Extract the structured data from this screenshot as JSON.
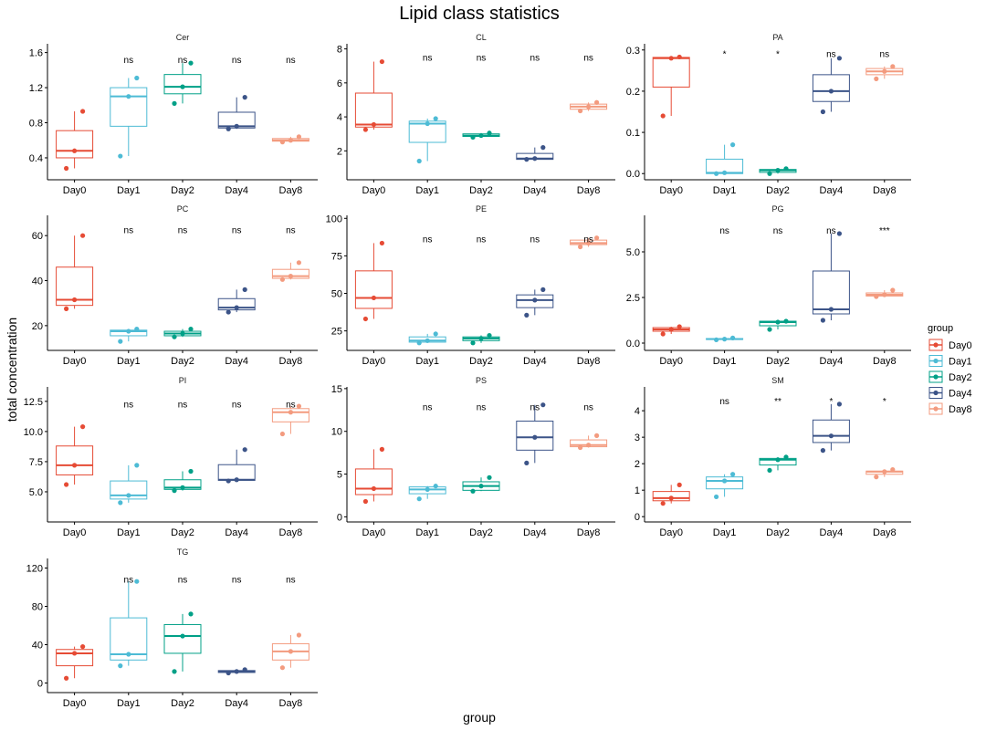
{
  "chart_data": {
    "type": "box",
    "title": "Lipid class statistics",
    "xlabel": "group",
    "ylabel": "total concentration",
    "grid": false,
    "categories": [
      "Day0",
      "Day1",
      "Day2",
      "Day4",
      "Day8"
    ],
    "legend": {
      "title": "group",
      "position": "right",
      "entries": [
        "Day0",
        "Day1",
        "Day2",
        "Day4",
        "Day8"
      ]
    },
    "colors": {
      "Day0": "#E64B35",
      "Day1": "#4DBBD5",
      "Day2": "#00A087",
      "Day4": "#3C5488",
      "Day8": "#F39B7F"
    },
    "panels": [
      {
        "name": "Cer",
        "ylim": [
          0.15,
          1.7
        ],
        "ticks": [
          0.4,
          0.8,
          1.2,
          1.6
        ],
        "tick_labels": [
          "0.4",
          "0.8",
          "1.2",
          "1.6"
        ],
        "sig": [
          "",
          "ns",
          "ns",
          "ns",
          "ns"
        ],
        "sig_y": 1.48,
        "boxes": [
          {
            "q1": 0.4,
            "median": 0.48,
            "q3": 0.71,
            "lo": 0.28,
            "hi": 0.93,
            "points": [
              0.28,
              0.48,
              0.93
            ]
          },
          {
            "q1": 0.76,
            "median": 1.1,
            "q3": 1.2,
            "lo": 0.42,
            "hi": 1.31,
            "points": [
              0.42,
              1.1,
              1.31
            ]
          },
          {
            "q1": 1.13,
            "median": 1.21,
            "q3": 1.35,
            "lo": 1.02,
            "hi": 1.48,
            "points": [
              1.02,
              1.21,
              1.48
            ]
          },
          {
            "q1": 0.74,
            "median": 0.76,
            "q3": 0.92,
            "lo": 0.73,
            "hi": 1.09,
            "points": [
              0.73,
              0.76,
              1.09
            ]
          },
          {
            "q1": 0.59,
            "median": 0.6,
            "q3": 0.62,
            "lo": 0.58,
            "hi": 0.64,
            "points": [
              0.58,
              0.6,
              0.64
            ]
          }
        ]
      },
      {
        "name": "CL",
        "ylim": [
          0.3,
          8.3
        ],
        "ticks": [
          2,
          4,
          6,
          8
        ],
        "tick_labels": [
          "2",
          "4",
          "6",
          "8"
        ],
        "sig": [
          "",
          "ns",
          "ns",
          "ns",
          "ns"
        ],
        "sig_y": 7.3,
        "boxes": [
          {
            "q1": 3.4,
            "median": 3.55,
            "q3": 5.4,
            "lo": 3.25,
            "hi": 7.25,
            "points": [
              3.25,
              3.55,
              7.25
            ]
          },
          {
            "q1": 2.5,
            "median": 3.6,
            "q3": 3.75,
            "lo": 1.4,
            "hi": 3.9,
            "points": [
              1.4,
              3.6,
              3.9
            ]
          },
          {
            "q1": 2.85,
            "median": 2.9,
            "q3": 3.0,
            "lo": 2.8,
            "hi": 3.05,
            "points": [
              2.8,
              2.9,
              3.05
            ]
          },
          {
            "q1": 1.5,
            "median": 1.55,
            "q3": 1.85,
            "lo": 1.5,
            "hi": 2.2,
            "points": [
              1.5,
              1.55,
              2.2
            ]
          },
          {
            "q1": 4.45,
            "median": 4.6,
            "q3": 4.75,
            "lo": 4.35,
            "hi": 4.85,
            "points": [
              4.35,
              4.6,
              4.85
            ]
          }
        ]
      },
      {
        "name": "PA",
        "ylim": [
          -0.015,
          0.315
        ],
        "ticks": [
          0.0,
          0.1,
          0.2,
          0.3
        ],
        "tick_labels": [
          "0.0",
          "0.1",
          "0.2",
          "0.3"
        ],
        "sig": [
          "",
          "*",
          "*",
          "ns",
          "ns"
        ],
        "sig_y": 0.283,
        "boxes": [
          {
            "q1": 0.21,
            "median": 0.28,
            "q3": 0.282,
            "lo": 0.14,
            "hi": 0.283,
            "points": [
              0.14,
              0.28,
              0.283
            ]
          },
          {
            "q1": 0.0,
            "median": 0.002,
            "q3": 0.035,
            "lo": 0.0,
            "hi": 0.07,
            "points": [
              0.0,
              0.002,
              0.07
            ]
          },
          {
            "q1": 0.003,
            "median": 0.008,
            "q3": 0.01,
            "lo": 0.0,
            "hi": 0.012,
            "points": [
              0.0,
              0.008,
              0.012
            ]
          },
          {
            "q1": 0.175,
            "median": 0.2,
            "q3": 0.24,
            "lo": 0.15,
            "hi": 0.28,
            "points": [
              0.15,
              0.2,
              0.28
            ]
          },
          {
            "q1": 0.24,
            "median": 0.248,
            "q3": 0.255,
            "lo": 0.23,
            "hi": 0.26,
            "points": [
              0.23,
              0.248,
              0.26
            ]
          }
        ]
      },
      {
        "name": "PC",
        "ylim": [
          9,
          69
        ],
        "ticks": [
          20,
          40,
          60
        ],
        "tick_labels": [
          "20",
          "40",
          "60"
        ],
        "sig": [
          "",
          "ns",
          "ns",
          "ns",
          "ns"
        ],
        "sig_y": 61,
        "boxes": [
          {
            "q1": 29,
            "median": 31.5,
            "q3": 46,
            "lo": 27.5,
            "hi": 60,
            "points": [
              27.5,
              31.5,
              60
            ]
          },
          {
            "q1": 15.5,
            "median": 17.5,
            "q3": 18,
            "lo": 13,
            "hi": 18.5,
            "points": [
              13,
              17.5,
              18.5
            ]
          },
          {
            "q1": 15.5,
            "median": 16.5,
            "q3": 17.5,
            "lo": 15,
            "hi": 18.5,
            "points": [
              15,
              16.5,
              18.5
            ]
          },
          {
            "q1": 27,
            "median": 28,
            "q3": 32,
            "lo": 26,
            "hi": 36,
            "points": [
              26,
              28,
              36
            ]
          },
          {
            "q1": 41,
            "median": 42,
            "q3": 45,
            "lo": 40.5,
            "hi": 48,
            "points": [
              40.5,
              42,
              48
            ]
          }
        ]
      },
      {
        "name": "PE",
        "ylim": [
          12,
          102
        ],
        "ticks": [
          25,
          50,
          75,
          100
        ],
        "tick_labels": [
          "25",
          "50",
          "75",
          "100"
        ],
        "sig": [
          "",
          "ns",
          "ns",
          "ns",
          "ns"
        ],
        "sig_y": 84,
        "boxes": [
          {
            "q1": 40,
            "median": 47,
            "q3": 65,
            "lo": 33,
            "hi": 83.5,
            "points": [
              33,
              47,
              83.5
            ]
          },
          {
            "q1": 17.5,
            "median": 18.5,
            "q3": 21,
            "lo": 17,
            "hi": 23,
            "points": [
              17,
              18.5,
              23
            ]
          },
          {
            "q1": 18.5,
            "median": 20,
            "q3": 21,
            "lo": 17,
            "hi": 22,
            "points": [
              17,
              20,
              22
            ]
          },
          {
            "q1": 40.5,
            "median": 45.5,
            "q3": 49,
            "lo": 35.5,
            "hi": 52.5,
            "points": [
              35.5,
              45.5,
              52.5
            ]
          },
          {
            "q1": 82.5,
            "median": 83.5,
            "q3": 85.5,
            "lo": 81,
            "hi": 87,
            "points": [
              81,
              83.5,
              87
            ]
          }
        ]
      },
      {
        "name": "PG",
        "ylim": [
          -0.4,
          7.0
        ],
        "ticks": [
          0.0,
          2.5,
          5.0
        ],
        "tick_labels": [
          "0.0",
          "2.5",
          "5.0"
        ],
        "sig": [
          "",
          "ns",
          "ns",
          "ns",
          "***"
        ],
        "sig_y": 6.0,
        "boxes": [
          {
            "q1": 0.65,
            "median": 0.75,
            "q3": 0.85,
            "lo": 0.5,
            "hi": 0.9,
            "points": [
              0.5,
              0.75,
              0.9
            ]
          },
          {
            "q1": 0.2,
            "median": 0.22,
            "q3": 0.25,
            "lo": 0.18,
            "hi": 0.28,
            "points": [
              0.18,
              0.22,
              0.28
            ]
          },
          {
            "q1": 0.95,
            "median": 1.15,
            "q3": 1.2,
            "lo": 0.75,
            "hi": 1.2,
            "points": [
              0.75,
              1.15,
              1.2
            ]
          },
          {
            "q1": 1.6,
            "median": 1.85,
            "q3": 3.95,
            "lo": 1.25,
            "hi": 6.0,
            "points": [
              1.25,
              1.85,
              6.0
            ]
          },
          {
            "q1": 2.58,
            "median": 2.65,
            "q3": 2.75,
            "lo": 2.55,
            "hi": 2.9,
            "points": [
              2.55,
              2.65,
              2.9
            ]
          }
        ]
      },
      {
        "name": "PI",
        "ylim": [
          2.5,
          13.7
        ],
        "ticks": [
          5.0,
          7.5,
          10.0,
          12.5
        ],
        "tick_labels": [
          "5.0",
          "7.5",
          "10.0",
          "12.5"
        ],
        "sig": [
          "",
          "ns",
          "ns",
          "ns",
          "ns"
        ],
        "sig_y": 12.0,
        "boxes": [
          {
            "q1": 6.4,
            "median": 7.2,
            "q3": 8.8,
            "lo": 5.6,
            "hi": 10.4,
            "points": [
              5.6,
              7.2,
              10.4
            ]
          },
          {
            "q1": 4.4,
            "median": 4.7,
            "q3": 5.9,
            "lo": 4.1,
            "hi": 7.2,
            "points": [
              4.1,
              4.7,
              7.2
            ]
          },
          {
            "q1": 5.2,
            "median": 5.35,
            "q3": 6.0,
            "lo": 5.1,
            "hi": 6.7,
            "points": [
              5.1,
              5.35,
              6.7
            ]
          },
          {
            "q1": 5.95,
            "median": 6.0,
            "q3": 7.25,
            "lo": 5.9,
            "hi": 8.5,
            "points": [
              5.9,
              6.0,
              8.5
            ]
          },
          {
            "q1": 10.8,
            "median": 11.6,
            "q3": 11.9,
            "lo": 9.8,
            "hi": 12.1,
            "points": [
              9.8,
              11.6,
              12.1
            ]
          }
        ]
      },
      {
        "name": "PS",
        "ylim": [
          -0.6,
          15.2
        ],
        "ticks": [
          0,
          5,
          10,
          15
        ],
        "tick_labels": [
          "0",
          "5",
          "10",
          "15"
        ],
        "sig": [
          "",
          "ns",
          "ns",
          "ns",
          "ns"
        ],
        "sig_y": 12.5,
        "boxes": [
          {
            "q1": 2.6,
            "median": 3.3,
            "q3": 5.6,
            "lo": 1.8,
            "hi": 7.9,
            "points": [
              1.8,
              3.3,
              7.9
            ]
          },
          {
            "q1": 2.7,
            "median": 3.2,
            "q3": 3.5,
            "lo": 2.1,
            "hi": 3.6,
            "points": [
              2.1,
              3.2,
              3.6
            ]
          },
          {
            "q1": 3.1,
            "median": 3.6,
            "q3": 4.1,
            "lo": 3.0,
            "hi": 4.6,
            "points": [
              3.0,
              3.6,
              4.6
            ]
          },
          {
            "q1": 7.8,
            "median": 9.3,
            "q3": 11.2,
            "lo": 6.3,
            "hi": 13.1,
            "points": [
              6.3,
              9.3,
              13.1
            ]
          },
          {
            "q1": 8.2,
            "median": 8.4,
            "q3": 9.0,
            "lo": 8.1,
            "hi": 9.5,
            "points": [
              8.1,
              8.4,
              9.5
            ]
          }
        ]
      },
      {
        "name": "SM",
        "ylim": [
          -0.2,
          4.9
        ],
        "ticks": [
          0,
          1,
          2,
          3,
          4
        ],
        "tick_labels": [
          "0",
          "1",
          "2",
          "3",
          "4"
        ],
        "sig": [
          "",
          "ns",
          "**",
          "*",
          "*"
        ],
        "sig_y": 4.25,
        "boxes": [
          {
            "q1": 0.6,
            "median": 0.7,
            "q3": 0.95,
            "lo": 0.5,
            "hi": 1.2,
            "points": [
              0.5,
              0.7,
              1.2
            ]
          },
          {
            "q1": 1.05,
            "median": 1.35,
            "q3": 1.5,
            "lo": 0.75,
            "hi": 1.6,
            "points": [
              0.75,
              1.35,
              1.6
            ]
          },
          {
            "q1": 1.95,
            "median": 2.15,
            "q3": 2.2,
            "lo": 1.75,
            "hi": 2.25,
            "points": [
              1.75,
              2.15,
              2.25
            ]
          },
          {
            "q1": 2.8,
            "median": 3.05,
            "q3": 3.65,
            "lo": 2.5,
            "hi": 4.25,
            "points": [
              2.5,
              3.05,
              4.25
            ]
          },
          {
            "q1": 1.6,
            "median": 1.7,
            "q3": 1.72,
            "lo": 1.5,
            "hi": 1.78,
            "points": [
              1.5,
              1.7,
              1.78
            ]
          }
        ]
      },
      {
        "name": "TG",
        "ylim": [
          -10,
          130
        ],
        "ticks": [
          0,
          40,
          80,
          120
        ],
        "tick_labels": [
          "0",
          "40",
          "80",
          "120"
        ],
        "sig": [
          "",
          "ns",
          "ns",
          "ns",
          "ns"
        ],
        "sig_y": 105,
        "boxes": [
          {
            "q1": 18,
            "median": 31,
            "q3": 35,
            "lo": 5,
            "hi": 38,
            "points": [
              5,
              31,
              38
            ]
          },
          {
            "q1": 24,
            "median": 30,
            "q3": 68,
            "lo": 18,
            "hi": 106,
            "points": [
              18,
              30,
              106
            ]
          },
          {
            "q1": 31,
            "median": 49,
            "q3": 61,
            "lo": 12,
            "hi": 72,
            "points": [
              12,
              49,
              72
            ]
          },
          {
            "q1": 11,
            "median": 12,
            "q3": 13,
            "lo": 10.5,
            "hi": 14,
            "points": [
              10.5,
              12,
              14
            ]
          },
          {
            "q1": 24,
            "median": 33,
            "q3": 41,
            "lo": 16,
            "hi": 50,
            "points": [
              16,
              33,
              50
            ]
          }
        ]
      }
    ]
  }
}
